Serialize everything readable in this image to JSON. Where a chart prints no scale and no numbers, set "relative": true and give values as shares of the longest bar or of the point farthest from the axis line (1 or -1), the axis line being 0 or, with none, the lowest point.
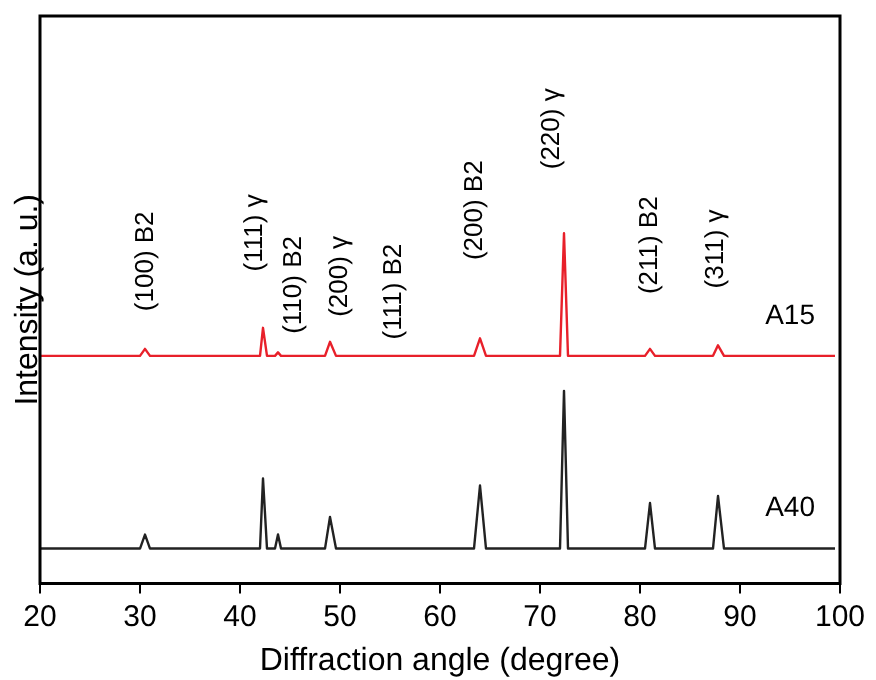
{
  "chart_data": {
    "type": "line",
    "relative": true,
    "xlabel": "Diffraction angle (degree)",
    "ylabel": "Intensity (a. u.)",
    "xlim": [
      20,
      100
    ],
    "xticks": [
      20,
      30,
      40,
      50,
      60,
      70,
      80,
      90,
      100
    ],
    "grid": false,
    "legend": false,
    "marker": "none",
    "line_style": "solid",
    "x": [
      20,
      30,
      30.5,
      31,
      42,
      42.3,
      42.7,
      43.5,
      43.8,
      44.1,
      48.5,
      49,
      49.6,
      63.4,
      64,
      64.6,
      72,
      72.4,
      72.8,
      80.5,
      81,
      81.5,
      87.3,
      87.8,
      88.4,
      99.5
    ],
    "series": [
      {
        "name": "A15",
        "color": "#e8202a",
        "values": [
          0.65,
          0.65,
          0.67,
          0.65,
          0.65,
          0.73,
          0.65,
          0.65,
          0.66,
          0.65,
          0.65,
          0.69,
          0.65,
          0.65,
          0.7,
          0.65,
          0.65,
          1.0,
          0.65,
          0.65,
          0.67,
          0.65,
          0.65,
          0.68,
          0.65,
          0.65
        ]
      },
      {
        "name": "A40",
        "color": "#222222",
        "values": [
          0.1,
          0.1,
          0.14,
          0.1,
          0.1,
          0.3,
          0.1,
          0.1,
          0.14,
          0.1,
          0.1,
          0.19,
          0.1,
          0.1,
          0.28,
          0.1,
          0.1,
          0.55,
          0.1,
          0.1,
          0.23,
          0.1,
          0.1,
          0.25,
          0.1,
          0.1
        ]
      }
    ],
    "annotations": [
      "(100) B2",
      "(111) γ",
      "(110) B2",
      "(200) γ",
      "(111) B2",
      "(200) B2",
      "(220) γ",
      "(211) B2",
      "(311) γ"
    ]
  }
}
